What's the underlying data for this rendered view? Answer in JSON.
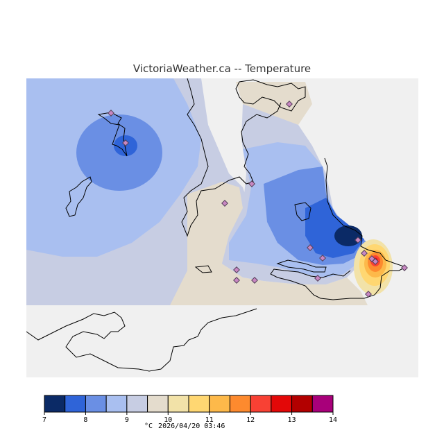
{
  "title": "VictoriaWeather.ca -- Temperature",
  "legend": {
    "units": "°C",
    "timestamp": "2026/04/20 03:46",
    "ticks": [
      "7",
      "8",
      "9",
      "10",
      "11",
      "12",
      "13",
      "14"
    ],
    "colors": [
      "#0b2a66",
      "#2f64d8",
      "#6a8fe4",
      "#a9bff0",
      "#c7cde3",
      "#e4dccd",
      "#f2e2a8",
      "#ffd772",
      "#fdb94a",
      "#fd8a2e",
      "#f84134",
      "#e30808",
      "#b20000",
      "#a8007a"
    ]
  },
  "map": {
    "background_color": "#f0f0f0",
    "no_data_color": "#ffffff",
    "stations_count": 16,
    "station_color": "#c887c2"
  }
}
